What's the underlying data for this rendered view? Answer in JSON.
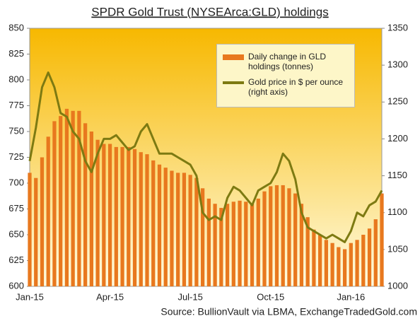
{
  "chart_data": {
    "type": "bar-line",
    "title": "SPDR Gold Trust (NYSEArca:GLD) holdings",
    "source": "Source: BullionVault via LBMA, ExchangeTradedGold.com",
    "categories": [
      "Jan-15",
      null,
      null,
      null,
      null,
      null,
      null,
      null,
      null,
      null,
      null,
      null,
      null,
      "Apr-15",
      null,
      null,
      null,
      null,
      null,
      null,
      null,
      null,
      null,
      null,
      null,
      null,
      "Jul-15",
      null,
      null,
      null,
      null,
      null,
      null,
      null,
      null,
      null,
      null,
      null,
      null,
      "Oct-15",
      null,
      null,
      null,
      null,
      null,
      null,
      null,
      null,
      null,
      null,
      null,
      null,
      "Jan-16",
      null,
      null,
      null,
      null,
      null
    ],
    "series": [
      {
        "name": "Daily change in GLD holdings (tonnes)",
        "type": "bar",
        "color": "#e8781e",
        "values": [
          710,
          705,
          725,
          745,
          760,
          765,
          772,
          770,
          770,
          758,
          750,
          742,
          738,
          738,
          735,
          735,
          735,
          733,
          730,
          728,
          722,
          718,
          715,
          712,
          710,
          710,
          708,
          705,
          695,
          685,
          680,
          676,
          680,
          682,
          683,
          682,
          680,
          685,
          692,
          697,
          698,
          698,
          695,
          690,
          680,
          667,
          655,
          650,
          645,
          642,
          638,
          636,
          642,
          645,
          650,
          656,
          665,
          690
        ]
      },
      {
        "name": "Gold price in $ per ounce (right axis)",
        "type": "line",
        "axis": "y2",
        "color": "#7d7a12",
        "values": [
          1170,
          1215,
          1270,
          1290,
          1270,
          1235,
          1230,
          1210,
          1200,
          1170,
          1155,
          1180,
          1200,
          1200,
          1205,
          1195,
          1185,
          1190,
          1210,
          1220,
          1200,
          1180,
          1180,
          1180,
          1175,
          1170,
          1165,
          1150,
          1100,
          1090,
          1095,
          1090,
          1120,
          1135,
          1130,
          1120,
          1110,
          1130,
          1135,
          1140,
          1155,
          1180,
          1170,
          1145,
          1100,
          1080,
          1075,
          1070,
          1065,
          1070,
          1065,
          1060,
          1075,
          1100,
          1095,
          1110,
          1115,
          1130
        ]
      }
    ],
    "ylim": [
      600,
      850
    ],
    "yticks": [
      600,
      625,
      650,
      675,
      700,
      725,
      750,
      775,
      800,
      825,
      850
    ],
    "y2lim": [
      1000,
      1350
    ],
    "y2ticks": [
      1000,
      1050,
      1100,
      1150,
      1200,
      1250,
      1300,
      1350
    ]
  }
}
